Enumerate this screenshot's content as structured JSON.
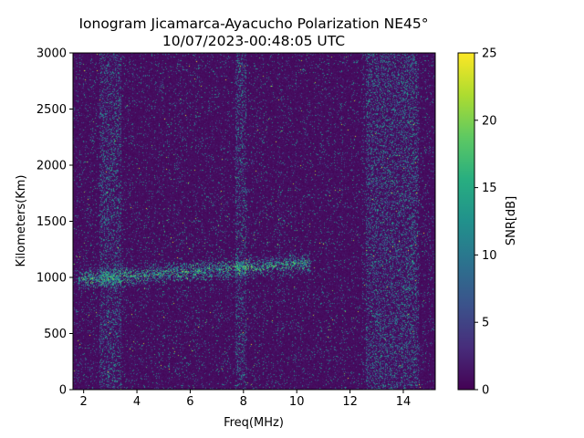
{
  "chart_data": {
    "type": "heatmap",
    "title": "Ionogram Jicamarca-Ayacucho Polarization NE45°",
    "subtitle": "10/07/2023-00:48:05 UTC",
    "xlabel": "Freq(MHz)",
    "ylabel": "Kilometers(Km)",
    "colorbar_label": "SNR[dB]",
    "colormap": "viridis",
    "xlim": [
      1.6,
      15.2
    ],
    "ylim": [
      0,
      3000
    ],
    "clim": [
      0,
      25
    ],
    "x_ticks": [
      2,
      4,
      6,
      8,
      10,
      12,
      14
    ],
    "x_tick_labels": [
      "2",
      "4",
      "6",
      "8",
      "10",
      "12",
      "14"
    ],
    "y_ticks": [
      0,
      500,
      1000,
      1500,
      2000,
      2500,
      3000
    ],
    "y_tick_labels": [
      "0",
      "500",
      "1000",
      "1500",
      "2000",
      "2500",
      "3000"
    ],
    "colorbar_ticks": [
      0,
      5,
      10,
      15,
      20,
      25
    ],
    "colorbar_tick_labels": [
      "0",
      "5",
      "10",
      "15",
      "20",
      "25"
    ],
    "features": [
      {
        "label": "echo trace",
        "x_range": [
          1.8,
          10.5
        ],
        "y_center_start": 980,
        "y_center_end": 1130,
        "snr_db": 14
      },
      {
        "label": "interference band",
        "x_range": [
          12.6,
          14.6
        ],
        "y_range": [
          0,
          3000
        ],
        "snr_db": 9
      },
      {
        "label": "interference band",
        "x_range": [
          7.7,
          8.1
        ],
        "y_range": [
          0,
          3000
        ],
        "snr_db": 7
      },
      {
        "label": "interference band",
        "x_range": [
          2.6,
          3.4
        ],
        "y_range": [
          0,
          3000
        ],
        "snr_db": 6
      }
    ]
  }
}
